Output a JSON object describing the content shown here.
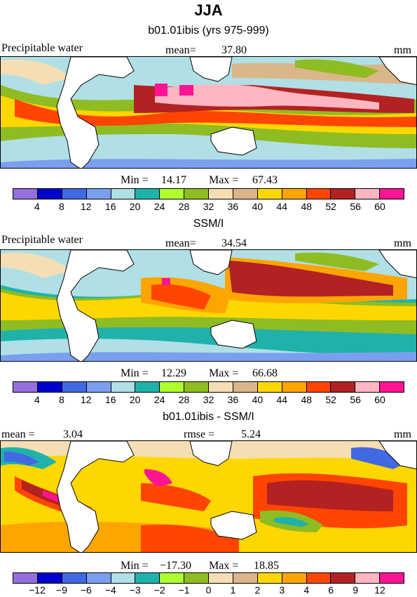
{
  "title": "JJA",
  "colors": {
    "main": [
      "#9370db",
      "#0000cd",
      "#4169e1",
      "#7b9fef",
      "#b0dfe6",
      "#20b2aa",
      "#adff2f",
      "#8fbc22",
      "#f5deb3",
      "#dbb68a",
      "#ffd700",
      "#ffa500",
      "#ff4500",
      "#b22222",
      "#ffb6c1",
      "#ff1493"
    ],
    "diff": [
      "#9370db",
      "#0000cd",
      "#4169e1",
      "#7b9fef",
      "#b0dfe6",
      "#20b2aa",
      "#adff2f",
      "#8fbc22",
      "#f5deb3",
      "#dbb68a",
      "#ffd700",
      "#ffa500",
      "#ff4500",
      "#b22222",
      "#ffb6c1",
      "#ff1493"
    ]
  },
  "panels": [
    {
      "title": "b01.01ibis (yrs 975-999)",
      "left_label": "Precipitable water",
      "mean_label": "mean=",
      "mean_value": "37.80",
      "units": "mm",
      "min_label": "Min =",
      "min_value": "14.17",
      "max_label": "Max =",
      "max_value": "67.43",
      "ticks": [
        "4",
        "8",
        "12",
        "16",
        "20",
        "24",
        "28",
        "32",
        "36",
        "40",
        "44",
        "48",
        "52",
        "56",
        "60"
      ]
    },
    {
      "title": "SSM/I",
      "left_label": "Precipitable water",
      "mean_label": "mean=",
      "mean_value": "34.54",
      "units": "mm",
      "min_label": "Min =",
      "min_value": "12.29",
      "max_label": "Max =",
      "max_value": "66.68",
      "ticks": [
        "4",
        "8",
        "12",
        "16",
        "20",
        "24",
        "28",
        "32",
        "36",
        "40",
        "44",
        "48",
        "52",
        "56",
        "60"
      ]
    },
    {
      "title": "b01.01ibis - SSM/I",
      "mean_label": "mean =",
      "mean_value": "3.04",
      "rmse_label": "rmse =",
      "rmse_value": "5.24",
      "units": "mm",
      "min_label": "Min =",
      "min_value": "−17.30",
      "max_label": "Max =",
      "max_value": "18.85",
      "ticks": [
        "−12",
        "−9",
        "−6",
        "−4",
        "−3",
        "−2",
        "−1",
        "0",
        "1",
        "2",
        "3",
        "4",
        "6",
        "9",
        "12"
      ]
    }
  ]
}
